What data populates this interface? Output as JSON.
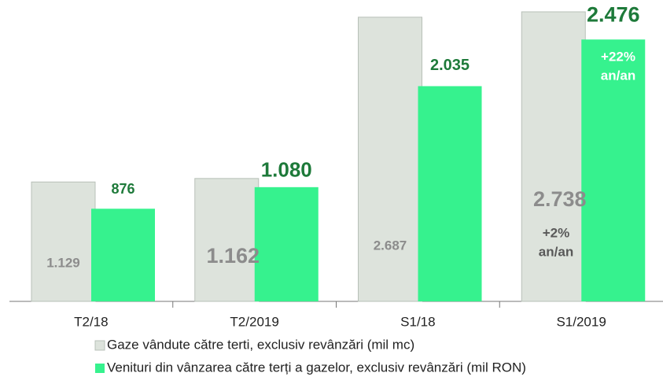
{
  "chart_data": {
    "type": "bar",
    "categories": [
      "T2/18",
      "T2/2019",
      "S1/18",
      "S1/2019"
    ],
    "series": [
      {
        "name": "Gaze vândute către terti, exclusiv revânzări (mil mc)",
        "color": "#dde3dc",
        "values": [
          1129,
          1162,
          2687,
          2738
        ],
        "value_labels": [
          "1.129",
          "1.162",
          "2.687",
          "2.738"
        ]
      },
      {
        "name": "Venituri din vânzarea către terți a gazelor, exclusiv revânzări (mil RON)",
        "color": "#36f28e",
        "values": [
          876,
          1080,
          2035,
          2476
        ],
        "value_labels": [
          "876",
          "1.080",
          "2.035",
          "2.476"
        ]
      }
    ],
    "annotations": [
      {
        "lines": [
          "+2%",
          "an/an"
        ]
      },
      {
        "lines": [
          "+22%",
          "an/an"
        ]
      }
    ]
  }
}
